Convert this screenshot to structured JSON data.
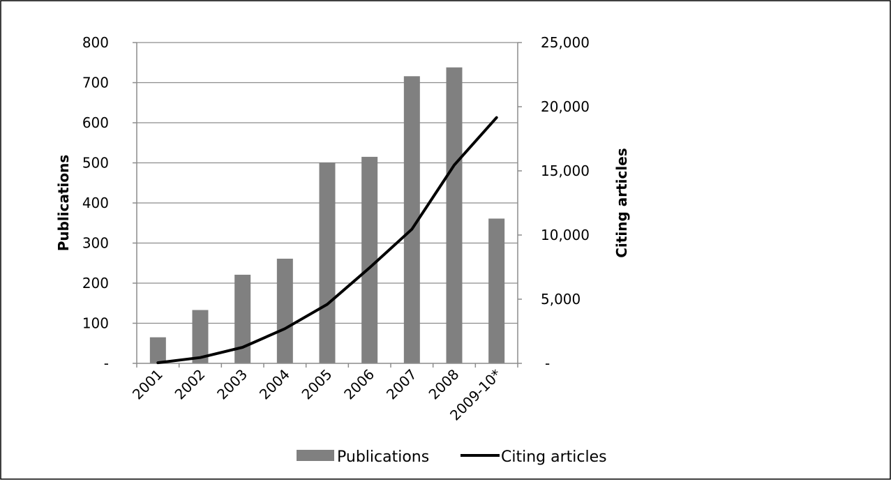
{
  "chart_data": {
    "type": "bar",
    "categories": [
      "2001",
      "2002",
      "2003",
      "2004",
      "2005",
      "2006",
      "2007",
      "2008",
      "2009-10*"
    ],
    "series": [
      {
        "name": "Publications",
        "type": "bar",
        "axis": "left",
        "color": "#808080",
        "values": [
          65,
          133,
          221,
          261,
          501,
          515,
          716,
          738,
          361
        ]
      },
      {
        "name": "Citing articles",
        "type": "line",
        "axis": "right",
        "color": "#000000",
        "values": [
          50,
          450,
          1250,
          2700,
          4600,
          7450,
          10450,
          15450,
          19150
        ]
      }
    ],
    "ylabel": "Publications",
    "ylabel_right": "Citing articles",
    "ylim": [
      0,
      800
    ],
    "ylim_right": [
      0,
      25000
    ],
    "yticks": [
      0,
      100,
      200,
      300,
      400,
      500,
      600,
      700,
      800
    ],
    "yticks_right": [
      0,
      5000,
      10000,
      15000,
      20000,
      25000
    ],
    "ytick_labels": [
      "-",
      "100",
      "200",
      "300",
      "400",
      "500",
      "600",
      "700",
      "800"
    ],
    "ytick_labels_right": [
      "-",
      "5,000",
      "10,000",
      "15,000",
      "20,000",
      "25,000"
    ],
    "grid": true,
    "legend_position": "bottom"
  }
}
